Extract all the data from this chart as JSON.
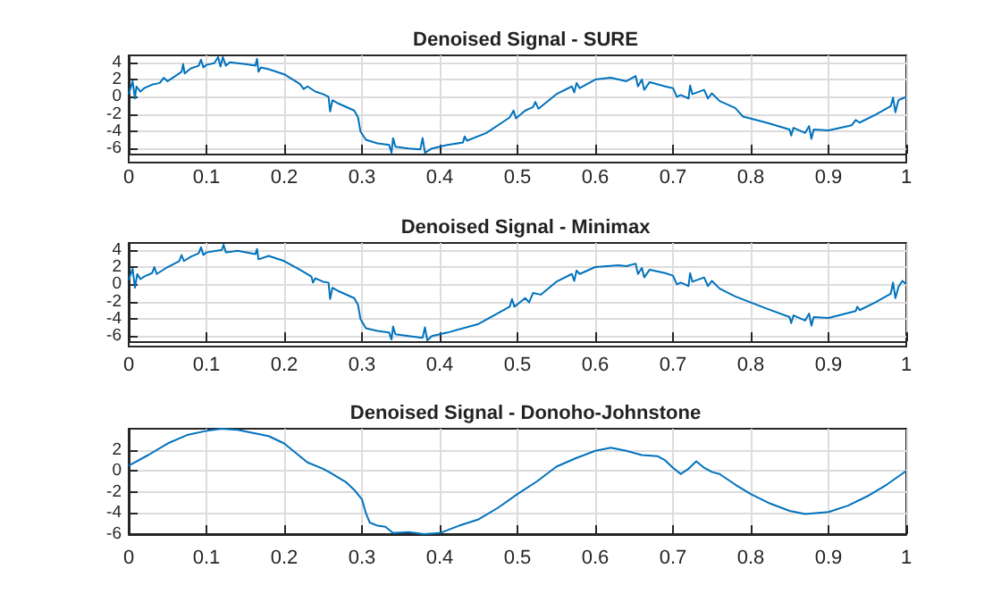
{
  "chart_data": [
    {
      "type": "line",
      "title": "Denoised Signal - SURE",
      "color": "#0072bd",
      "grid": true,
      "xlim": [
        0,
        1
      ],
      "xticks": [
        0,
        0.1,
        0.2,
        0.3,
        0.4,
        0.5,
        0.6,
        0.7,
        0.8,
        0.9,
        1
      ],
      "ylim": [
        -6.6,
        4.8
      ],
      "yticks": [
        -6,
        -4,
        -2,
        0,
        2,
        4
      ],
      "x": [
        0,
        0.005,
        0.008,
        0.01,
        0.015,
        0.02,
        0.03,
        0.04,
        0.045,
        0.05,
        0.06,
        0.068,
        0.07,
        0.072,
        0.08,
        0.09,
        0.093,
        0.096,
        0.1,
        0.11,
        0.115,
        0.118,
        0.121,
        0.125,
        0.13,
        0.15,
        0.163,
        0.165,
        0.167,
        0.17,
        0.18,
        0.2,
        0.22,
        0.225,
        0.23,
        0.24,
        0.25,
        0.257,
        0.259,
        0.262,
        0.27,
        0.29,
        0.295,
        0.298,
        0.305,
        0.32,
        0.335,
        0.338,
        0.34,
        0.343,
        0.36,
        0.375,
        0.378,
        0.381,
        0.39,
        0.41,
        0.43,
        0.432,
        0.435,
        0.46,
        0.49,
        0.495,
        0.498,
        0.51,
        0.52,
        0.523,
        0.527,
        0.55,
        0.57,
        0.573,
        0.576,
        0.58,
        0.6,
        0.62,
        0.64,
        0.652,
        0.655,
        0.66,
        0.663,
        0.67,
        0.69,
        0.7,
        0.705,
        0.71,
        0.72,
        0.722,
        0.725,
        0.74,
        0.745,
        0.75,
        0.76,
        0.78,
        0.79,
        0.82,
        0.85,
        0.852,
        0.855,
        0.87,
        0.875,
        0.878,
        0.881,
        0.9,
        0.93,
        0.935,
        0.94,
        0.96,
        0.98,
        0.983,
        0.986,
        0.99,
        0.995,
        1
      ],
      "values": [
        0.3,
        1.8,
        -0.2,
        1.2,
        0.6,
        1.0,
        1.4,
        1.6,
        2.2,
        1.8,
        2.4,
        2.9,
        3.8,
        2.7,
        3.3,
        3.6,
        4.3,
        3.4,
        3.7,
        3.9,
        4.6,
        3.5,
        4.6,
        3.6,
        4.0,
        3.8,
        3.6,
        4.4,
        2.9,
        3.4,
        3.2,
        2.6,
        1.5,
        0.9,
        1.2,
        0.6,
        0.3,
        0.0,
        -1.7,
        -0.4,
        -0.8,
        -1.6,
        -2.4,
        -4.0,
        -5.0,
        -5.4,
        -5.6,
        -6.5,
        -4.8,
        -5.8,
        -6.0,
        -6.1,
        -4.8,
        -6.5,
        -6.0,
        -5.6,
        -5.3,
        -4.6,
        -5.1,
        -4.2,
        -2.4,
        -1.6,
        -2.5,
        -1.6,
        -1.2,
        -0.6,
        -1.4,
        0.3,
        1.2,
        0.5,
        1.6,
        1.0,
        2.0,
        2.2,
        1.8,
        2.4,
        1.2,
        2.0,
        0.8,
        1.7,
        1.2,
        1.0,
        0.0,
        0.2,
        -0.2,
        1.3,
        0.3,
        0.8,
        -0.2,
        0.4,
        -0.5,
        -1.3,
        -2.3,
        -3.0,
        -3.8,
        -4.5,
        -3.6,
        -4.2,
        -3.4,
        -4.9,
        -3.8,
        -3.9,
        -3.3,
        -2.7,
        -3.0,
        -2.1,
        -1.1,
        -0.1,
        -1.8,
        -0.4,
        -0.2,
        0.0
      ]
    },
    {
      "type": "line",
      "title": "Denoised Signal - Minimax",
      "color": "#0072bd",
      "grid": true,
      "xlim": [
        0,
        1
      ],
      "xticks": [
        0,
        0.1,
        0.2,
        0.3,
        0.4,
        0.5,
        0.6,
        0.7,
        0.8,
        0.9,
        1
      ],
      "ylim": [
        -6.6,
        4.8
      ],
      "yticks": [
        -6,
        -4,
        -2,
        0,
        2,
        4
      ],
      "x": [
        0,
        0.005,
        0.008,
        0.011,
        0.015,
        0.02,
        0.03,
        0.033,
        0.036,
        0.05,
        0.065,
        0.068,
        0.071,
        0.08,
        0.09,
        0.093,
        0.096,
        0.1,
        0.12,
        0.122,
        0.125,
        0.14,
        0.163,
        0.165,
        0.167,
        0.18,
        0.2,
        0.22,
        0.235,
        0.237,
        0.24,
        0.25,
        0.257,
        0.259,
        0.262,
        0.27,
        0.29,
        0.295,
        0.298,
        0.305,
        0.32,
        0.335,
        0.338,
        0.34,
        0.343,
        0.36,
        0.378,
        0.381,
        0.384,
        0.39,
        0.41,
        0.45,
        0.49,
        0.493,
        0.496,
        0.51,
        0.515,
        0.52,
        0.53,
        0.55,
        0.57,
        0.573,
        0.576,
        0.58,
        0.6,
        0.63,
        0.64,
        0.652,
        0.655,
        0.66,
        0.663,
        0.67,
        0.69,
        0.7,
        0.705,
        0.71,
        0.72,
        0.722,
        0.725,
        0.74,
        0.745,
        0.75,
        0.76,
        0.78,
        0.8,
        0.82,
        0.85,
        0.852,
        0.855,
        0.87,
        0.875,
        0.878,
        0.881,
        0.9,
        0.935,
        0.937,
        0.94,
        0.96,
        0.98,
        0.983,
        0.986,
        0.99,
        0.995,
        1
      ],
      "values": [
        0.5,
        1.8,
        -0.4,
        1.2,
        0.6,
        0.9,
        1.3,
        2.0,
        1.2,
        2.0,
        2.7,
        3.4,
        2.7,
        3.2,
        3.6,
        4.3,
        3.4,
        3.7,
        4.0,
        4.6,
        3.7,
        3.9,
        3.5,
        4.1,
        2.9,
        3.3,
        2.7,
        1.7,
        0.9,
        0.2,
        0.7,
        0.3,
        0.2,
        -1.7,
        -0.4,
        -0.8,
        -1.6,
        -2.4,
        -4.0,
        -5.1,
        -5.4,
        -5.6,
        -6.4,
        -4.9,
        -5.8,
        -6.0,
        -6.2,
        -5.0,
        -6.5,
        -6.0,
        -5.6,
        -4.6,
        -2.6,
        -1.7,
        -2.6,
        -1.6,
        -2.1,
        -1.0,
        -1.2,
        0.3,
        1.2,
        0.4,
        1.6,
        1.2,
        2.0,
        2.2,
        2.1,
        2.4,
        1.2,
        1.9,
        0.8,
        1.7,
        1.3,
        1.0,
        0.0,
        0.2,
        -0.2,
        1.3,
        0.3,
        0.8,
        -0.2,
        0.4,
        -0.5,
        -1.4,
        -2.1,
        -2.8,
        -3.8,
        -4.5,
        -3.6,
        -4.2,
        -3.4,
        -4.8,
        -3.8,
        -3.9,
        -3.1,
        -2.6,
        -3.0,
        -2.1,
        -1.1,
        0.2,
        -1.6,
        -0.3,
        0.4,
        0.0
      ]
    },
    {
      "type": "line",
      "title": "Denoised Signal - Donoho-Johnstone",
      "color": "#0072bd",
      "grid": true,
      "xlim": [
        0,
        1
      ],
      "xticks": [
        0,
        0.1,
        0.2,
        0.3,
        0.4,
        0.5,
        0.6,
        0.7,
        0.8,
        0.9,
        1
      ],
      "ylim": [
        -6,
        4
      ],
      "yticks": [
        -6,
        -4,
        -2,
        0,
        2
      ],
      "x": [
        0,
        0.025,
        0.05,
        0.075,
        0.1,
        0.12,
        0.14,
        0.16,
        0.18,
        0.2,
        0.22,
        0.23,
        0.25,
        0.26,
        0.28,
        0.29,
        0.3,
        0.305,
        0.31,
        0.32,
        0.33,
        0.34,
        0.36,
        0.38,
        0.4,
        0.425,
        0.45,
        0.475,
        0.5,
        0.525,
        0.55,
        0.575,
        0.6,
        0.62,
        0.64,
        0.66,
        0.68,
        0.69,
        0.7,
        0.71,
        0.72,
        0.73,
        0.74,
        0.75,
        0.76,
        0.78,
        0.8,
        0.825,
        0.85,
        0.87,
        0.9,
        0.925,
        0.95,
        0.975,
        1
      ],
      "values": [
        0.5,
        1.5,
        2.6,
        3.4,
        3.8,
        4.0,
        3.9,
        3.6,
        3.3,
        2.6,
        1.4,
        0.8,
        0.2,
        -0.2,
        -1.1,
        -1.8,
        -2.7,
        -4.0,
        -4.9,
        -5.2,
        -5.3,
        -5.9,
        -5.8,
        -6.0,
        -5.9,
        -5.2,
        -4.6,
        -3.5,
        -2.2,
        -1.0,
        0.4,
        1.2,
        1.9,
        2.2,
        1.9,
        1.5,
        1.4,
        1.0,
        0.3,
        -0.3,
        0.2,
        0.9,
        0.3,
        -0.1,
        -0.3,
        -1.3,
        -2.2,
        -3.1,
        -3.8,
        -4.1,
        -3.9,
        -3.3,
        -2.4,
        -1.3,
        0
      ]
    }
  ]
}
